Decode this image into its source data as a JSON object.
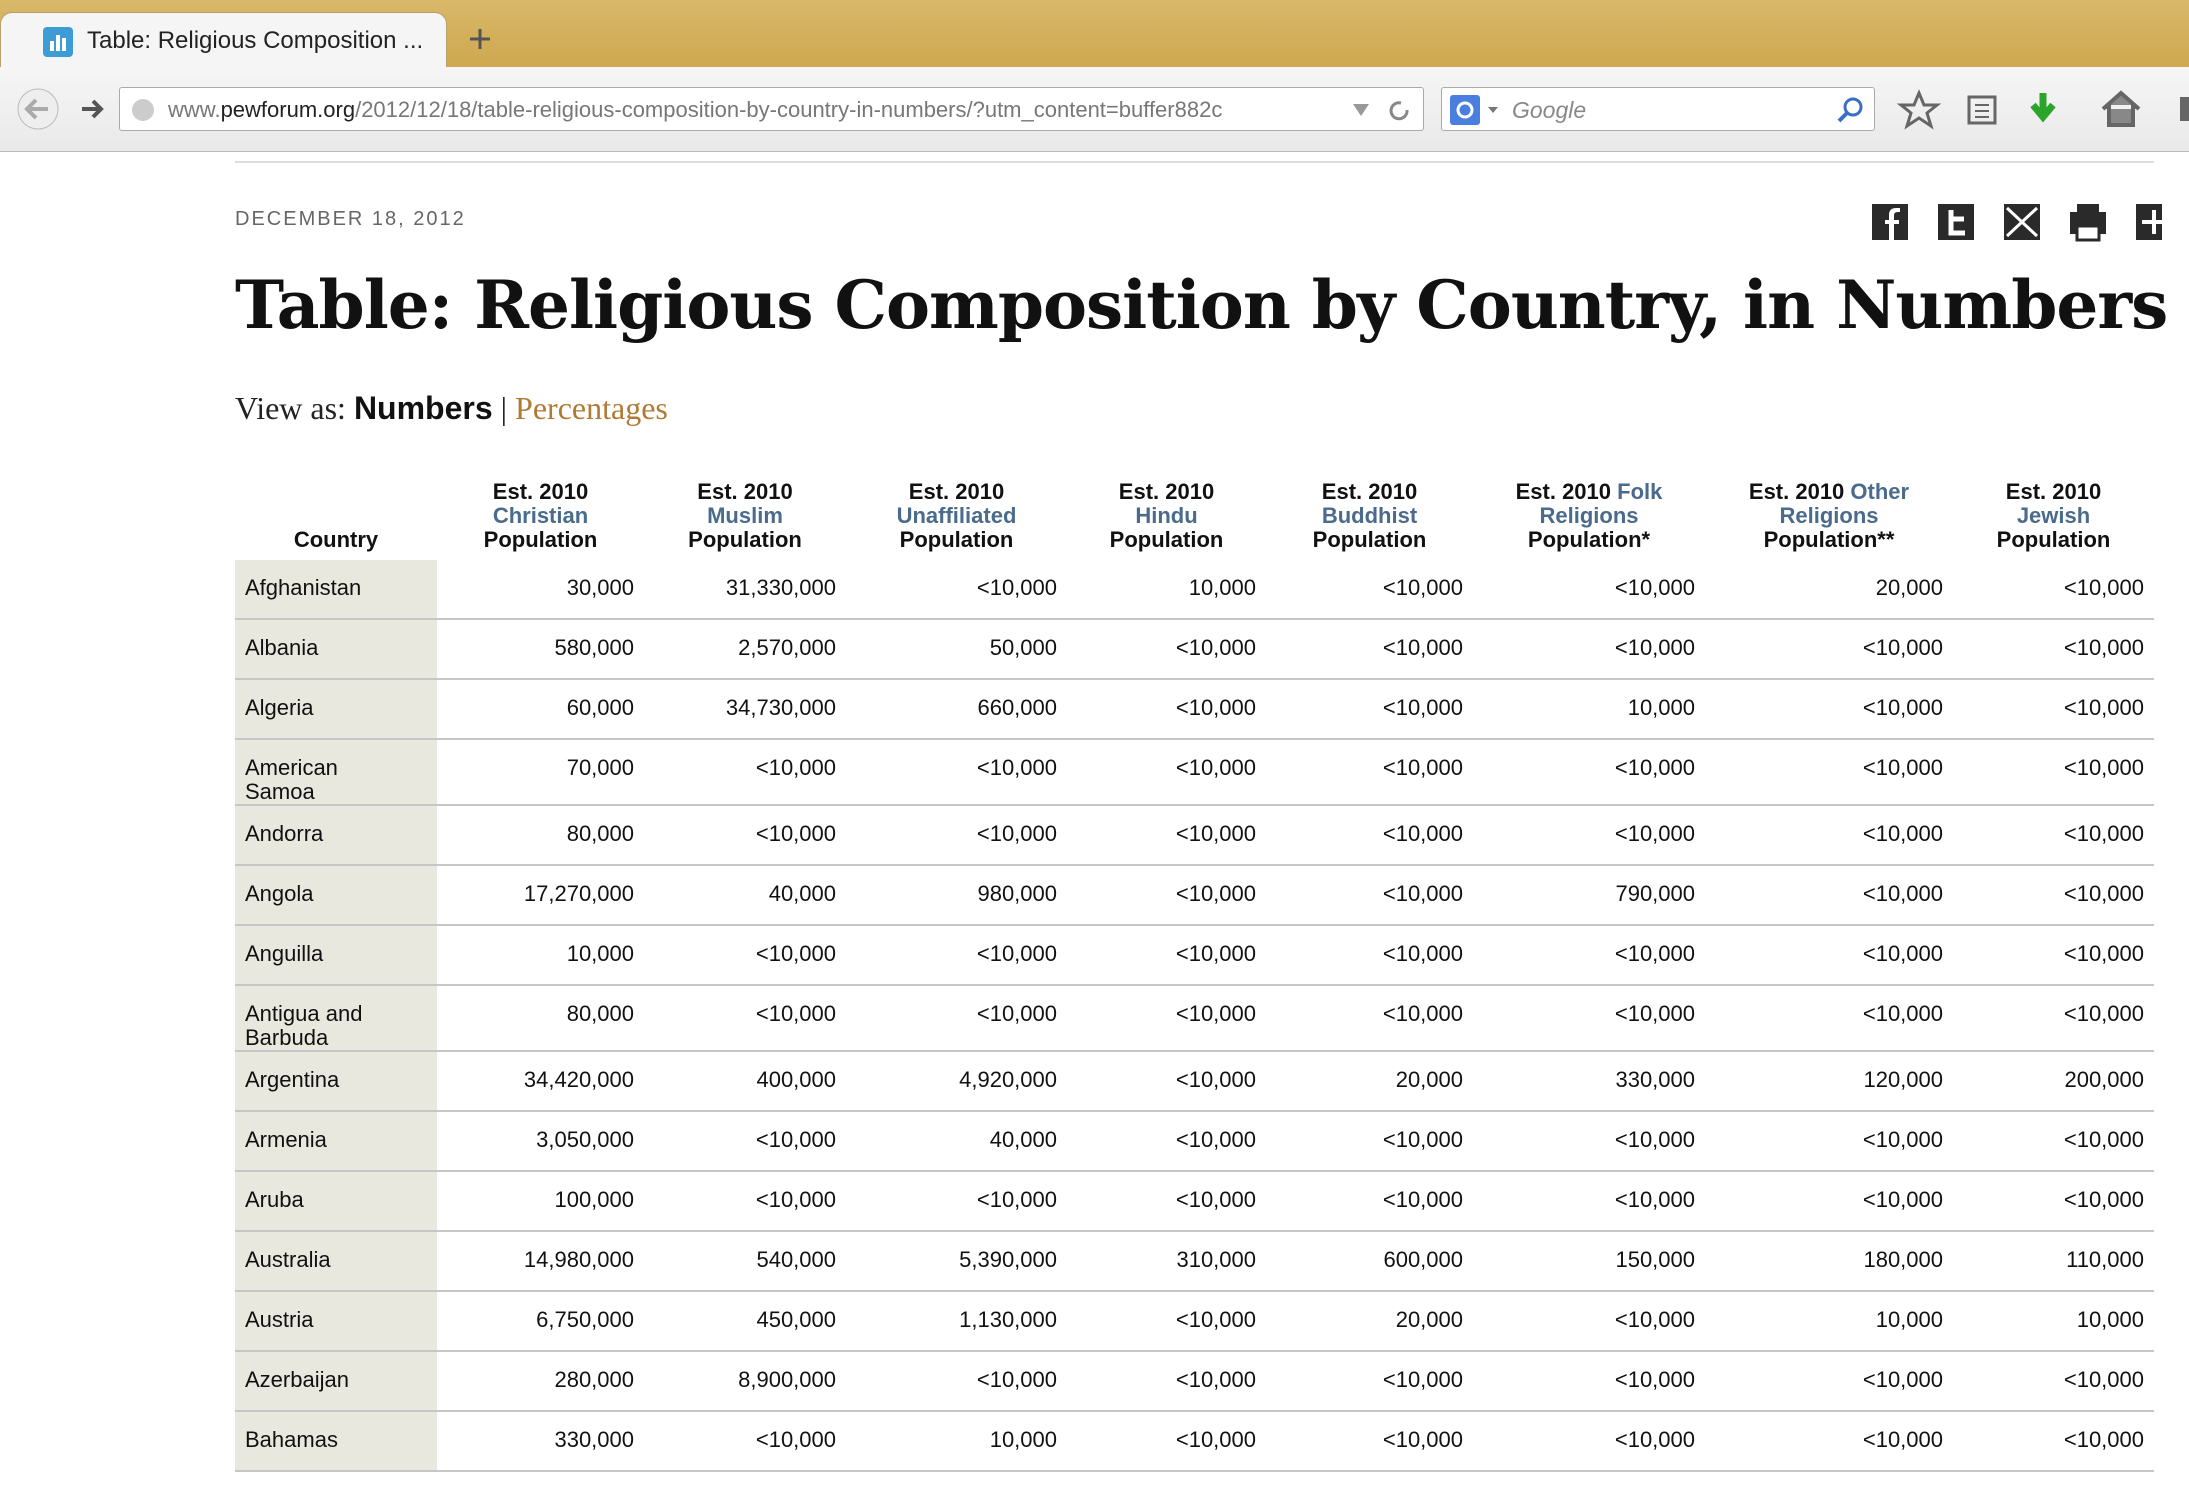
{
  "browser": {
    "tab_title": "Table: Religious Composition ...",
    "url": [
      "www.",
      "pewforum.org",
      "/2012/12/18/table-religious-composition-by-country-in-numbers/?utm_content=buffer882c"
    ],
    "search_placeholder": "Google"
  },
  "article": {
    "date": "DECEMBER 18, 2012",
    "title": "Table: Religious Composition by Country, in Numbers",
    "view_as_label": "View as:",
    "view_options": [
      "Numbers",
      "Percentages"
    ],
    "separator": "|"
  },
  "table": {
    "columns": [
      {
        "label": "Country"
      },
      {
        "pre": "Est. 2010",
        "term": "Christian",
        "post": "Population"
      },
      {
        "pre": "Est. 2010",
        "term": "Muslim",
        "post": "Population"
      },
      {
        "pre": "Est. 2010",
        "term": "Unaffiliated",
        "post": "Population"
      },
      {
        "pre": "Est. 2010",
        "term": "Hindu",
        "post": "Population"
      },
      {
        "pre": "Est. 2010",
        "term": "Buddhist",
        "post": "Population"
      },
      {
        "pre": "Est. 2010",
        "term": "Folk Religions",
        "post": "Population*"
      },
      {
        "pre": "Est. 2010",
        "term": "Other Religions",
        "post": "Population**"
      },
      {
        "pre": "Est. 2010",
        "term": "Jewish",
        "post": "Population"
      }
    ],
    "rows": [
      [
        "Afghanistan",
        "30,000",
        "31,330,000",
        "<10,000",
        "10,000",
        "<10,000",
        "<10,000",
        "20,000",
        "<10,000"
      ],
      [
        "Albania",
        "580,000",
        "2,570,000",
        "50,000",
        "<10,000",
        "<10,000",
        "<10,000",
        "<10,000",
        "<10,000"
      ],
      [
        "Algeria",
        "60,000",
        "34,730,000",
        "660,000",
        "<10,000",
        "<10,000",
        "10,000",
        "<10,000",
        "<10,000"
      ],
      [
        "American Samoa",
        "70,000",
        "<10,000",
        "<10,000",
        "<10,000",
        "<10,000",
        "<10,000",
        "<10,000",
        "<10,000"
      ],
      [
        "Andorra",
        "80,000",
        "<10,000",
        "<10,000",
        "<10,000",
        "<10,000",
        "<10,000",
        "<10,000",
        "<10,000"
      ],
      [
        "Angola",
        "17,270,000",
        "40,000",
        "980,000",
        "<10,000",
        "<10,000",
        "790,000",
        "<10,000",
        "<10,000"
      ],
      [
        "Anguilla",
        "10,000",
        "<10,000",
        "<10,000",
        "<10,000",
        "<10,000",
        "<10,000",
        "<10,000",
        "<10,000"
      ],
      [
        "Antigua and Barbuda",
        "80,000",
        "<10,000",
        "<10,000",
        "<10,000",
        "<10,000",
        "<10,000",
        "<10,000",
        "<10,000"
      ],
      [
        "Argentina",
        "34,420,000",
        "400,000",
        "4,920,000",
        "<10,000",
        "20,000",
        "330,000",
        "120,000",
        "200,000"
      ],
      [
        "Armenia",
        "3,050,000",
        "<10,000",
        "40,000",
        "<10,000",
        "<10,000",
        "<10,000",
        "<10,000",
        "<10,000"
      ],
      [
        "Aruba",
        "100,000",
        "<10,000",
        "<10,000",
        "<10,000",
        "<10,000",
        "<10,000",
        "<10,000",
        "<10,000"
      ],
      [
        "Australia",
        "14,980,000",
        "540,000",
        "5,390,000",
        "310,000",
        "600,000",
        "150,000",
        "180,000",
        "110,000"
      ],
      [
        "Austria",
        "6,750,000",
        "450,000",
        "1,130,000",
        "<10,000",
        "20,000",
        "<10,000",
        "10,000",
        "10,000"
      ],
      [
        "Azerbaijan",
        "280,000",
        "8,900,000",
        "<10,000",
        "<10,000",
        "<10,000",
        "<10,000",
        "<10,000",
        "<10,000"
      ],
      [
        "Bahamas",
        "330,000",
        "<10,000",
        "10,000",
        "<10,000",
        "<10,000",
        "<10,000",
        "<10,000",
        "<10,000"
      ]
    ]
  }
}
